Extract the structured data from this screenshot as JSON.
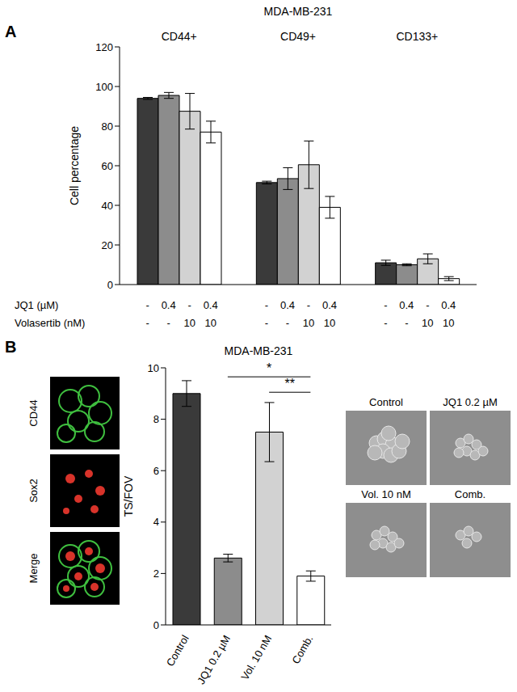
{
  "chart_data": [
    {
      "panel": "A",
      "type": "bar",
      "title": "MDA-MB-231",
      "y_label": "Cell percentage",
      "categories": [
        "CD44+",
        "CD49+",
        "CD133+"
      ],
      "series": [
        {
          "color": "#3a3a3a",
          "values": [
            94,
            51.5,
            11
          ],
          "errors": [
            0.5,
            0.7,
            1.3
          ]
        },
        {
          "color": "#8c8c8c",
          "values": [
            95.5,
            53.5,
            10
          ],
          "errors": [
            1.5,
            5.5,
            0.5
          ]
        },
        {
          "color": "#d2d2d2",
          "values": [
            87.5,
            60.5,
            13
          ],
          "errors": [
            9,
            12,
            2.5
          ]
        },
        {
          "color": "#ffffff",
          "values": [
            77,
            39,
            3
          ],
          "errors": [
            5.5,
            5.5,
            1
          ]
        }
      ],
      "ylim": [
        0,
        120
      ],
      "yticks": [
        0,
        20,
        40,
        60,
        80,
        100,
        120
      ],
      "treatments": [
        {
          "label": "JQ1 (µM)",
          "values": [
            "-",
            "0.4",
            "-",
            "0.4"
          ]
        },
        {
          "label": "Volasertib (nM)",
          "values": [
            "-",
            "-",
            "10",
            "10"
          ]
        }
      ]
    },
    {
      "panel": "B",
      "type": "bar",
      "title": "MDA-MB-231",
      "y_label": "TS/FOV",
      "categories": [
        "Control",
        "JQ1 0.2 µM",
        "Vol. 10 nM",
        "Comb."
      ],
      "values": [
        9,
        2.6,
        7.5,
        1.9
      ],
      "errors": [
        0.5,
        0.15,
        1.15,
        0.2
      ],
      "colors": [
        "#3a3a3a",
        "#8c8c8c",
        "#d2d2d2",
        "#ffffff"
      ],
      "ylim": [
        0,
        10
      ],
      "yticks": [
        0,
        2,
        4,
        6,
        8,
        10
      ],
      "annotations": [
        {
          "from": "JQ1 0.2 µM",
          "to": "Comb.",
          "label": "*"
        },
        {
          "from": "Vol. 10 nM",
          "to": "Comb.",
          "label": "**"
        }
      ]
    }
  ],
  "images": {
    "fluorescence_labels": [
      "CD44",
      "Sox2",
      "Merge"
    ],
    "sphere_labels": [
      "Control",
      "JQ1 0.2 µM",
      "Vol. 10 nM",
      "Comb."
    ]
  }
}
